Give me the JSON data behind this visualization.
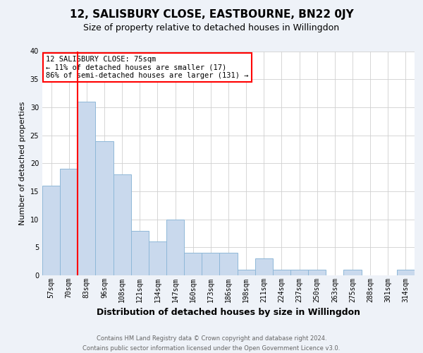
{
  "title": "12, SALISBURY CLOSE, EASTBOURNE, BN22 0JY",
  "subtitle": "Size of property relative to detached houses in Willingdon",
  "xlabel": "Distribution of detached houses by size in Willingdon",
  "ylabel": "Number of detached properties",
  "footer_line1": "Contains HM Land Registry data © Crown copyright and database right 2024.",
  "footer_line2": "Contains public sector information licensed under the Open Government Licence v3.0.",
  "bar_labels": [
    "57sqm",
    "70sqm",
    "83sqm",
    "96sqm",
    "108sqm",
    "121sqm",
    "134sqm",
    "147sqm",
    "160sqm",
    "173sqm",
    "186sqm",
    "198sqm",
    "211sqm",
    "224sqm",
    "237sqm",
    "250sqm",
    "263sqm",
    "275sqm",
    "288sqm",
    "301sqm",
    "314sqm"
  ],
  "bar_values": [
    16,
    19,
    31,
    24,
    18,
    8,
    6,
    10,
    4,
    4,
    4,
    1,
    3,
    1,
    1,
    1,
    0,
    1,
    0,
    0,
    1
  ],
  "bar_color": "#c9d9ed",
  "bar_edge_color": "#8fb8d8",
  "vline_color": "red",
  "vline_x": 1.5,
  "annotation_text": "12 SALISBURY CLOSE: 75sqm\n← 11% of detached houses are smaller (17)\n86% of semi-detached houses are larger (131) →",
  "annotation_box_color": "white",
  "annotation_box_edge_color": "red",
  "ylim": [
    0,
    40
  ],
  "yticks": [
    0,
    5,
    10,
    15,
    20,
    25,
    30,
    35,
    40
  ],
  "grid_color": "#d0d0d0",
  "background_color": "#eef2f8",
  "plot_bg_color": "white",
  "title_fontsize": 11,
  "subtitle_fontsize": 9,
  "xlabel_fontsize": 9,
  "ylabel_fontsize": 8,
  "tick_fontsize": 7,
  "annotation_fontsize": 7.5,
  "footer_fontsize": 6
}
